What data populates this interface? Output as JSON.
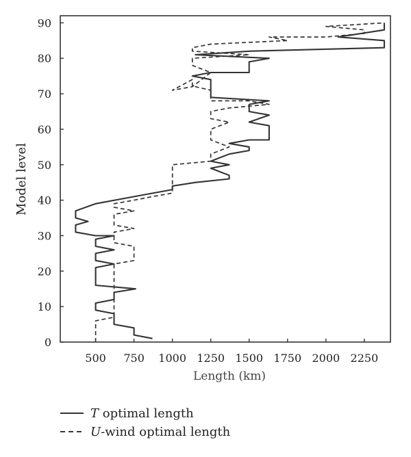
{
  "chart_data": {
    "type": "line",
    "title": "",
    "xlabel": "Length (km)",
    "ylabel": "Model level",
    "xlim": [
      270,
      2420
    ],
    "ylim": [
      0,
      92
    ],
    "x_ticks": [
      500,
      750,
      1000,
      1250,
      1500,
      1750,
      2000,
      2250
    ],
    "y_ticks": [
      0,
      10,
      20,
      30,
      40,
      50,
      60,
      70,
      80,
      90
    ],
    "x_tick_labels": [
      "500",
      "750",
      "1000",
      "1250",
      "1500",
      "1750",
      "2000",
      "2250"
    ],
    "y_tick_labels": [
      "0",
      "10",
      "20",
      "30",
      "40",
      "50",
      "60",
      "70",
      "80",
      "90"
    ],
    "grid": false,
    "legend_position": "bottom-left, below plot",
    "legend": [
      {
        "prefix": "T",
        "suffix": " optimal length"
      },
      {
        "prefix": "U",
        "suffix": "-wind optimal length"
      }
    ],
    "series": [
      {
        "name": "T optimal length",
        "style": "solid",
        "color": "#333333",
        "x": [
          870,
          750,
          750,
          620,
          620,
          500,
          500,
          620,
          620,
          760,
          500,
          500,
          620,
          500,
          500,
          620,
          500,
          500,
          620,
          500,
          370,
          370,
          450,
          370,
          370,
          500,
          750,
          1000,
          1000,
          1150,
          1370,
          1370,
          1250,
          1370,
          1250,
          1370,
          1500,
          1500,
          1370,
          1500,
          1630,
          1630,
          1500,
          1630,
          1500,
          1500,
          1630,
          1250,
          1250,
          1130,
          1250,
          1500,
          1500,
          1630,
          1150,
          1500,
          2380,
          2380,
          2080,
          2380,
          2380
        ],
        "y": [
          1,
          2,
          4,
          5,
          8,
          9,
          11,
          12,
          14,
          15,
          16,
          21,
          22,
          23,
          25,
          26,
          27,
          29,
          30,
          30,
          31,
          33,
          34,
          35,
          37,
          39,
          41,
          43,
          44,
          45,
          46,
          47,
          49,
          50,
          51,
          53,
          54,
          55,
          56,
          57,
          57,
          61,
          62,
          64,
          65,
          67,
          68,
          69,
          74,
          75,
          76,
          76,
          79,
          80,
          81,
          82,
          83,
          85,
          86,
          88,
          90
        ]
      },
      {
        "name": "U-wind optimal length",
        "style": "dashed",
        "color": "#333333",
        "x": [
          500,
          500,
          500,
          620,
          620,
          620,
          620,
          620,
          750,
          750,
          620,
          620,
          750,
          620,
          620,
          750,
          620,
          620,
          750,
          870,
          1000,
          1000,
          1250,
          1250,
          1370,
          1250,
          1250,
          1370,
          1250,
          1250,
          1370,
          1630,
          1500,
          1250,
          1250,
          1150,
          1130,
          1130,
          1000,
          1130,
          1250,
          1130,
          1130,
          1500,
          1130,
          1130,
          1250,
          1750,
          1630,
          2000,
          2250,
          2250,
          2000,
          2380
        ],
        "y": [
          0,
          3,
          6,
          7,
          12,
          17,
          21,
          22,
          23,
          27,
          28,
          31,
          32,
          33,
          36,
          37,
          38,
          39,
          40,
          41,
          42,
          50,
          51,
          53,
          55,
          57,
          60,
          62,
          63,
          65,
          66,
          67,
          68,
          68,
          71,
          72,
          72,
          74,
          71,
          72,
          76,
          78,
          80,
          81,
          82,
          83,
          84,
          85,
          86,
          86,
          87,
          88,
          89,
          90
        ]
      }
    ]
  },
  "colors": {
    "axis": "#333333",
    "series": "#333333",
    "axis_title_x": "#444444"
  }
}
